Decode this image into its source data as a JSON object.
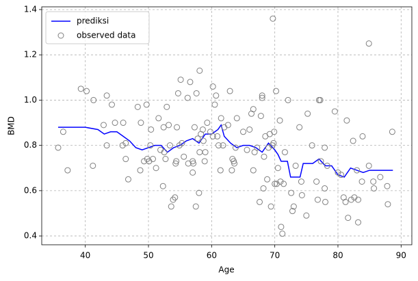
{
  "chart_data": {
    "type": "scatter",
    "xlabel": "Age",
    "ylabel": "BMD",
    "xlim": [
      33.1,
      91.7
    ],
    "ylim": [
      0.361,
      1.412
    ],
    "xticks": [
      40,
      50,
      60,
      70,
      80,
      90
    ],
    "yticks": [
      0.4,
      0.6,
      0.8,
      {
        "value": 1,
        "label": "1.0"
      },
      1.2,
      1.4
    ],
    "grid": true,
    "legend": "upper left",
    "series": [
      {
        "name": "prediksi",
        "type": "line",
        "color": "#0000ff",
        "x": [
          35.7,
          40,
          42,
          43,
          44,
          45,
          46,
          47,
          48,
          49,
          50,
          51,
          52,
          53,
          54,
          55,
          56,
          57,
          58,
          59,
          60,
          61,
          61.5,
          62,
          63,
          64,
          65,
          66,
          67,
          68,
          69,
          70,
          70.5,
          71,
          72,
          72.5,
          74,
          74.5,
          76,
          77,
          78,
          79,
          80,
          81,
          82,
          83,
          84,
          85,
          86,
          88.7
        ],
        "values": [
          0.88,
          0.88,
          0.87,
          0.85,
          0.86,
          0.86,
          0.84,
          0.82,
          0.79,
          0.78,
          0.79,
          0.8,
          0.8,
          0.77,
          0.79,
          0.8,
          0.82,
          0.83,
          0.81,
          0.85,
          0.85,
          0.87,
          0.89,
          0.84,
          0.81,
          0.79,
          0.8,
          0.8,
          0.79,
          0.77,
          0.81,
          0.78,
          0.76,
          0.73,
          0.73,
          0.66,
          0.66,
          0.72,
          0.72,
          0.74,
          0.71,
          0.71,
          0.67,
          0.66,
          0.7,
          0.69,
          0.68,
          0.69,
          0.69,
          0.69
        ]
      },
      {
        "name": "observed data",
        "type": "scatter",
        "color": "#808080",
        "x": [
          35.7,
          36.5,
          37.2,
          39.3,
          40.2,
          41.3,
          41.2,
          42.9,
          43.4,
          43.4,
          44.2,
          44.7,
          45.9,
          46,
          46.4,
          46.4,
          46.8,
          48.3,
          48.7,
          48.8,
          49.3,
          49.7,
          49.8,
          50.1,
          50.3,
          50.4,
          50.7,
          51.2,
          51.6,
          51.9,
          52.3,
          52.4,
          52.5,
          52.7,
          52.9,
          53.2,
          53.4,
          53.6,
          53.9,
          54.2,
          54.3,
          54.4,
          54.5,
          54.7,
          54.9,
          55.1,
          55.3,
          55.6,
          56.2,
          56.3,
          56.6,
          57,
          57,
          57.1,
          57.3,
          57.5,
          57.6,
          57.8,
          58,
          58.1,
          58.1,
          58.3,
          58.6,
          58.7,
          58.9,
          59,
          59.3,
          59.8,
          60.2,
          60.2,
          60.5,
          60.7,
          60.9,
          61.1,
          61.4,
          61.5,
          61.8,
          62,
          62.6,
          62.9,
          63.2,
          63.3,
          63.5,
          63.6,
          63.8,
          64,
          65,
          65.6,
          66,
          66.3,
          66.6,
          66.8,
          66.6,
          67.2,
          67.6,
          67.8,
          68,
          68,
          68.2,
          68.3,
          68.5,
          68.8,
          69,
          69.2,
          69.4,
          69.6,
          69.7,
          69.8,
          69.9,
          70,
          70.2,
          70.3,
          70.5,
          70.8,
          70.9,
          71,
          71.2,
          71.4,
          71.6,
          72.1,
          72.6,
          72.8,
          73,
          73.3,
          73.9,
          74.2,
          74.3,
          75,
          75.2,
          75.9,
          76.6,
          76.8,
          77,
          77.2,
          77.3,
          77.9,
          77.9,
          78,
          78.3,
          79.5,
          80,
          80.5,
          80.9,
          81.2,
          81.4,
          81.6,
          82.1,
          82.4,
          82.6,
          83,
          83.2,
          83.2,
          83.8,
          83.9,
          84.9,
          84.9,
          85.6,
          85.7,
          86.7,
          87.8,
          87.9,
          88.6
        ],
        "values": [
          0.79,
          0.86,
          0.69,
          1.05,
          1.04,
          1,
          0.71,
          0.89,
          1.02,
          0.8,
          0.98,
          0.9,
          0.8,
          0.9,
          0.81,
          0.74,
          0.65,
          0.97,
          0.69,
          0.9,
          0.73,
          0.98,
          0.74,
          0.73,
          0.8,
          0.87,
          0.74,
          0.7,
          0.92,
          0.78,
          0.62,
          0.88,
          0.77,
          0.74,
          0.97,
          0.89,
          0.8,
          0.53,
          0.56,
          0.57,
          0.72,
          0.73,
          0.88,
          1.03,
          0.8,
          1.09,
          0.81,
          0.75,
          1.01,
          0.72,
          1.08,
          0.68,
          0.73,
          0.72,
          0.88,
          0.53,
          1.03,
          0.83,
          0.59,
          0.77,
          1.13,
          0.85,
          0.87,
          0.82,
          0.73,
          0.77,
          0.9,
          0.86,
          1.06,
          0.84,
          0.98,
          1.02,
          0.84,
          0.8,
          0.69,
          0.92,
          0.8,
          0.88,
          0.89,
          1.04,
          0.69,
          0.74,
          0.73,
          0.72,
          0.79,
          0.92,
          0.86,
          0.78,
          0.87,
          0.94,
          0.96,
          0.77,
          0.69,
          0.79,
          0.55,
          0.93,
          1.02,
          1.01,
          0.61,
          0.75,
          0.84,
          0.65,
          0.79,
          0.85,
          0.53,
          0.8,
          1.36,
          0.81,
          0.86,
          0.63,
          1.04,
          0.63,
          0.7,
          0.91,
          0.64,
          0.44,
          0.41,
          0.63,
          0.77,
          1,
          0.59,
          0.51,
          0.53,
          0.71,
          0.88,
          0.64,
          0.58,
          0.49,
          0.94,
          0.8,
          0.64,
          0.56,
          1,
          1,
          0.73,
          0.79,
          0.61,
          0.55,
          0.71,
          0.95,
          0.68,
          0.67,
          0.57,
          0.55,
          0.91,
          0.48,
          0.56,
          0.82,
          0.57,
          0.69,
          0.56,
          0.46,
          0.64,
          0.84,
          0.71,
          1.25,
          0.64,
          0.61,
          0.66,
          0.62,
          0.54,
          0.86
        ]
      }
    ]
  }
}
